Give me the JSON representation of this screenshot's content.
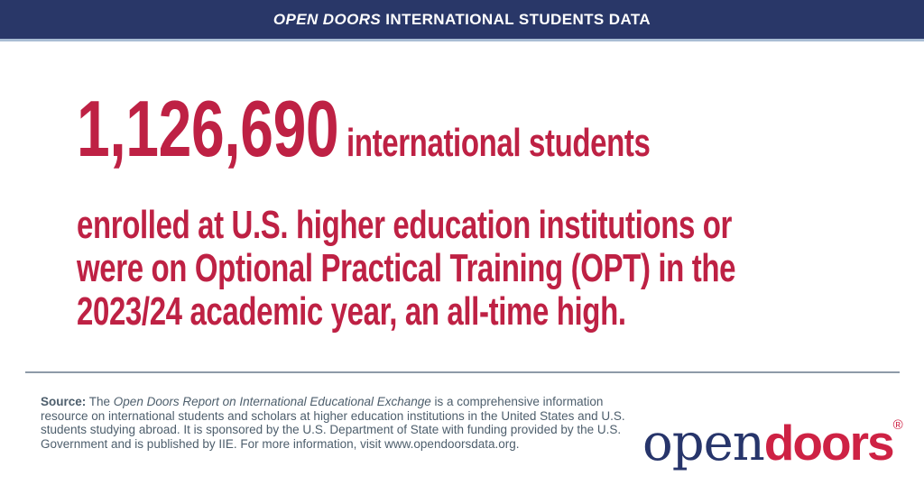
{
  "header": {
    "title_italic": "OPEN DOORS",
    "title_rest": " INTERNATIONAL STUDENTS DATA",
    "bar_color": "#293768",
    "underline_color": "#a9bdd4",
    "text_color": "#ffffff"
  },
  "headline": {
    "number": "1,126,690",
    "line1_rest": " international students",
    "line2": "enrolled at U.S. higher education institutions or",
    "line3": "were on Optional Practical Training (OPT) in the",
    "line4": "2023/24 academic year, an all-time high.",
    "color": "#be2144"
  },
  "footer": {
    "source_label": "Source:",
    "before_italic": " The ",
    "italic_title": "Open Doors Report on International Educational Exchange",
    "after_italic": " is a comprehensive information resource on international students and scholars at higher education institutions in the United States and U.S. students studying abroad. It is sponsored by the U.S. Department of State with funding provided by the U.S. Government and is published by IIE. For more information, visit www.opendoorsdata.org.",
    "text_color": "#4d5e6c",
    "divider_color": "#8e9aa8"
  },
  "logo": {
    "part_open": "open",
    "part_doors": "doors",
    "registered_mark": "®",
    "navy_color": "#27356b",
    "red_color": "#ce2244"
  }
}
